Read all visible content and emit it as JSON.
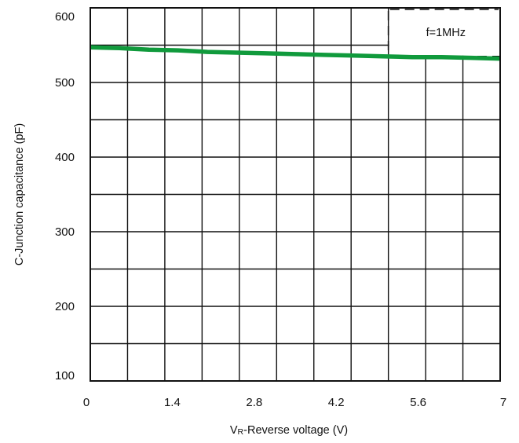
{
  "chart_data": {
    "type": "line",
    "title": "",
    "xlabel_main": "V",
    "xlabel_sub": "R",
    "xlabel_rest": "-Reverse voltage (V)",
    "ylabel": "C-Junction capacitance (pF)",
    "xlim": [
      0,
      7
    ],
    "ylim": [
      100,
      600
    ],
    "x_tick_labels": [
      "0",
      "1.4",
      "2.8",
      "4.2",
      "5.6",
      "7"
    ],
    "y_tick_labels": [
      "100",
      "200",
      "300",
      "400",
      "500",
      "600"
    ],
    "grid": true,
    "annotation": "f=1MHz",
    "line_color": "#109a3c",
    "series": [
      {
        "x": [
          0,
          0.5,
          1.0,
          1.5,
          2.0,
          2.5,
          3.0,
          3.5,
          4.0,
          4.5,
          5.0,
          5.5,
          6.0,
          6.5,
          7.0
        ],
        "values": [
          547,
          546,
          544,
          543,
          541,
          540,
          539,
          538,
          537,
          536,
          535,
          534,
          534,
          533,
          532
        ]
      }
    ]
  }
}
